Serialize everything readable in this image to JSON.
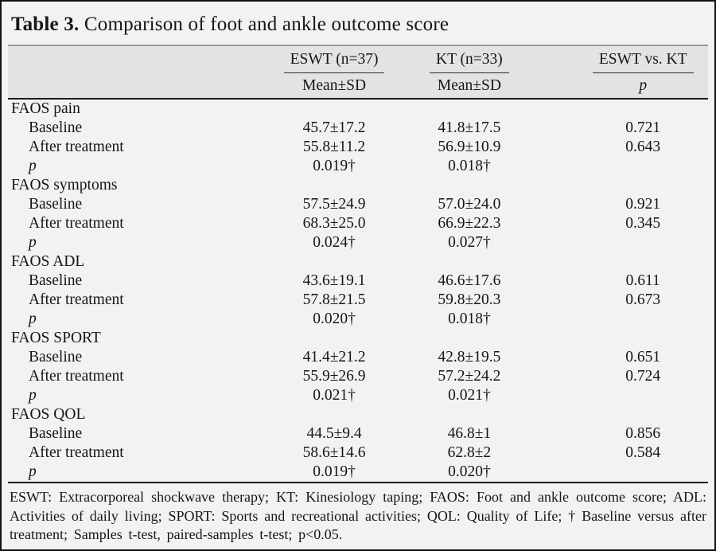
{
  "title": {
    "number": "Table 3.",
    "caption": "Comparison of foot and ankle outcome score"
  },
  "header": {
    "groups": [
      {
        "label": "ESWT (n=37)",
        "sub": "Mean±SD"
      },
      {
        "label": "KT (n=33)",
        "sub": "Mean±SD"
      },
      {
        "label": "ESWT vs. KT",
        "sub": "p"
      }
    ]
  },
  "table": {
    "sections": [
      {
        "name": "FAOS pain",
        "rows": [
          {
            "label": "Baseline",
            "italic": false,
            "eswt": "45.7±17.2",
            "kt": "41.8±17.5",
            "p": "0.721"
          },
          {
            "label": "After treatment",
            "italic": false,
            "eswt": "55.8±11.2",
            "kt": "56.9±10.9",
            "p": "0.643"
          },
          {
            "label": "p",
            "italic": true,
            "eswt": "0.019†",
            "kt": "0.018†",
            "p": ""
          }
        ]
      },
      {
        "name": "FAOS symptoms",
        "rows": [
          {
            "label": "Baseline",
            "italic": false,
            "eswt": "57.5±24.9",
            "kt": "57.0±24.0",
            "p": "0.921"
          },
          {
            "label": "After treatment",
            "italic": false,
            "eswt": "68.3±25.0",
            "kt": "66.9±22.3",
            "p": "0.345"
          },
          {
            "label": "p",
            "italic": true,
            "eswt": "0.024†",
            "kt": "0.027†",
            "p": ""
          }
        ]
      },
      {
        "name": "FAOS ADL",
        "rows": [
          {
            "label": "Baseline",
            "italic": false,
            "eswt": "43.6±19.1",
            "kt": "46.6±17.6",
            "p": "0.611"
          },
          {
            "label": "After treatment",
            "italic": false,
            "eswt": "57.8±21.5",
            "kt": "59.8±20.3",
            "p": "0.673"
          },
          {
            "label": "p",
            "italic": true,
            "eswt": "0.020†",
            "kt": "0.018†",
            "p": ""
          }
        ]
      },
      {
        "name": "FAOS SPORT",
        "rows": [
          {
            "label": "Baseline",
            "italic": false,
            "eswt": "41.4±21.2",
            "kt": "42.8±19.5",
            "p": "0.651"
          },
          {
            "label": "After treatment",
            "italic": false,
            "eswt": "55.9±26.9",
            "kt": "57.2±24.2",
            "p": "0.724"
          },
          {
            "label": "p",
            "italic": true,
            "eswt": "0.021†",
            "kt": "0.021†",
            "p": ""
          }
        ]
      },
      {
        "name": "FAOS QOL",
        "rows": [
          {
            "label": "Baseline",
            "italic": false,
            "eswt": "44.5±9.4",
            "kt": "46.8±1",
            "p": "0.856"
          },
          {
            "label": "After treatment",
            "italic": false,
            "eswt": "58.6±14.6",
            "kt": "62.8±2",
            "p": "0.584"
          },
          {
            "label": "p",
            "italic": true,
            "eswt": "0.019†",
            "kt": "0.020†",
            "p": ""
          }
        ]
      }
    ]
  },
  "footnote": "ESWT: Extracorporeal shockwave therapy; KT: Kinesiology taping; FAOS: Foot and ankle outcome score; ADL: Activities of daily living; SPORT: Sports and recreational activities; QOL: Quality of Life; † Baseline versus after treatment; Samples t-test, paired-samples t-test; p<0.05.",
  "colors": {
    "page_background": "#f2f2f2",
    "header_band": "#e3e3e3",
    "dark_rule": "#1c1c1c",
    "light_rule": "#9a9a9a",
    "outer_border": "#121212",
    "text": "#161616"
  }
}
